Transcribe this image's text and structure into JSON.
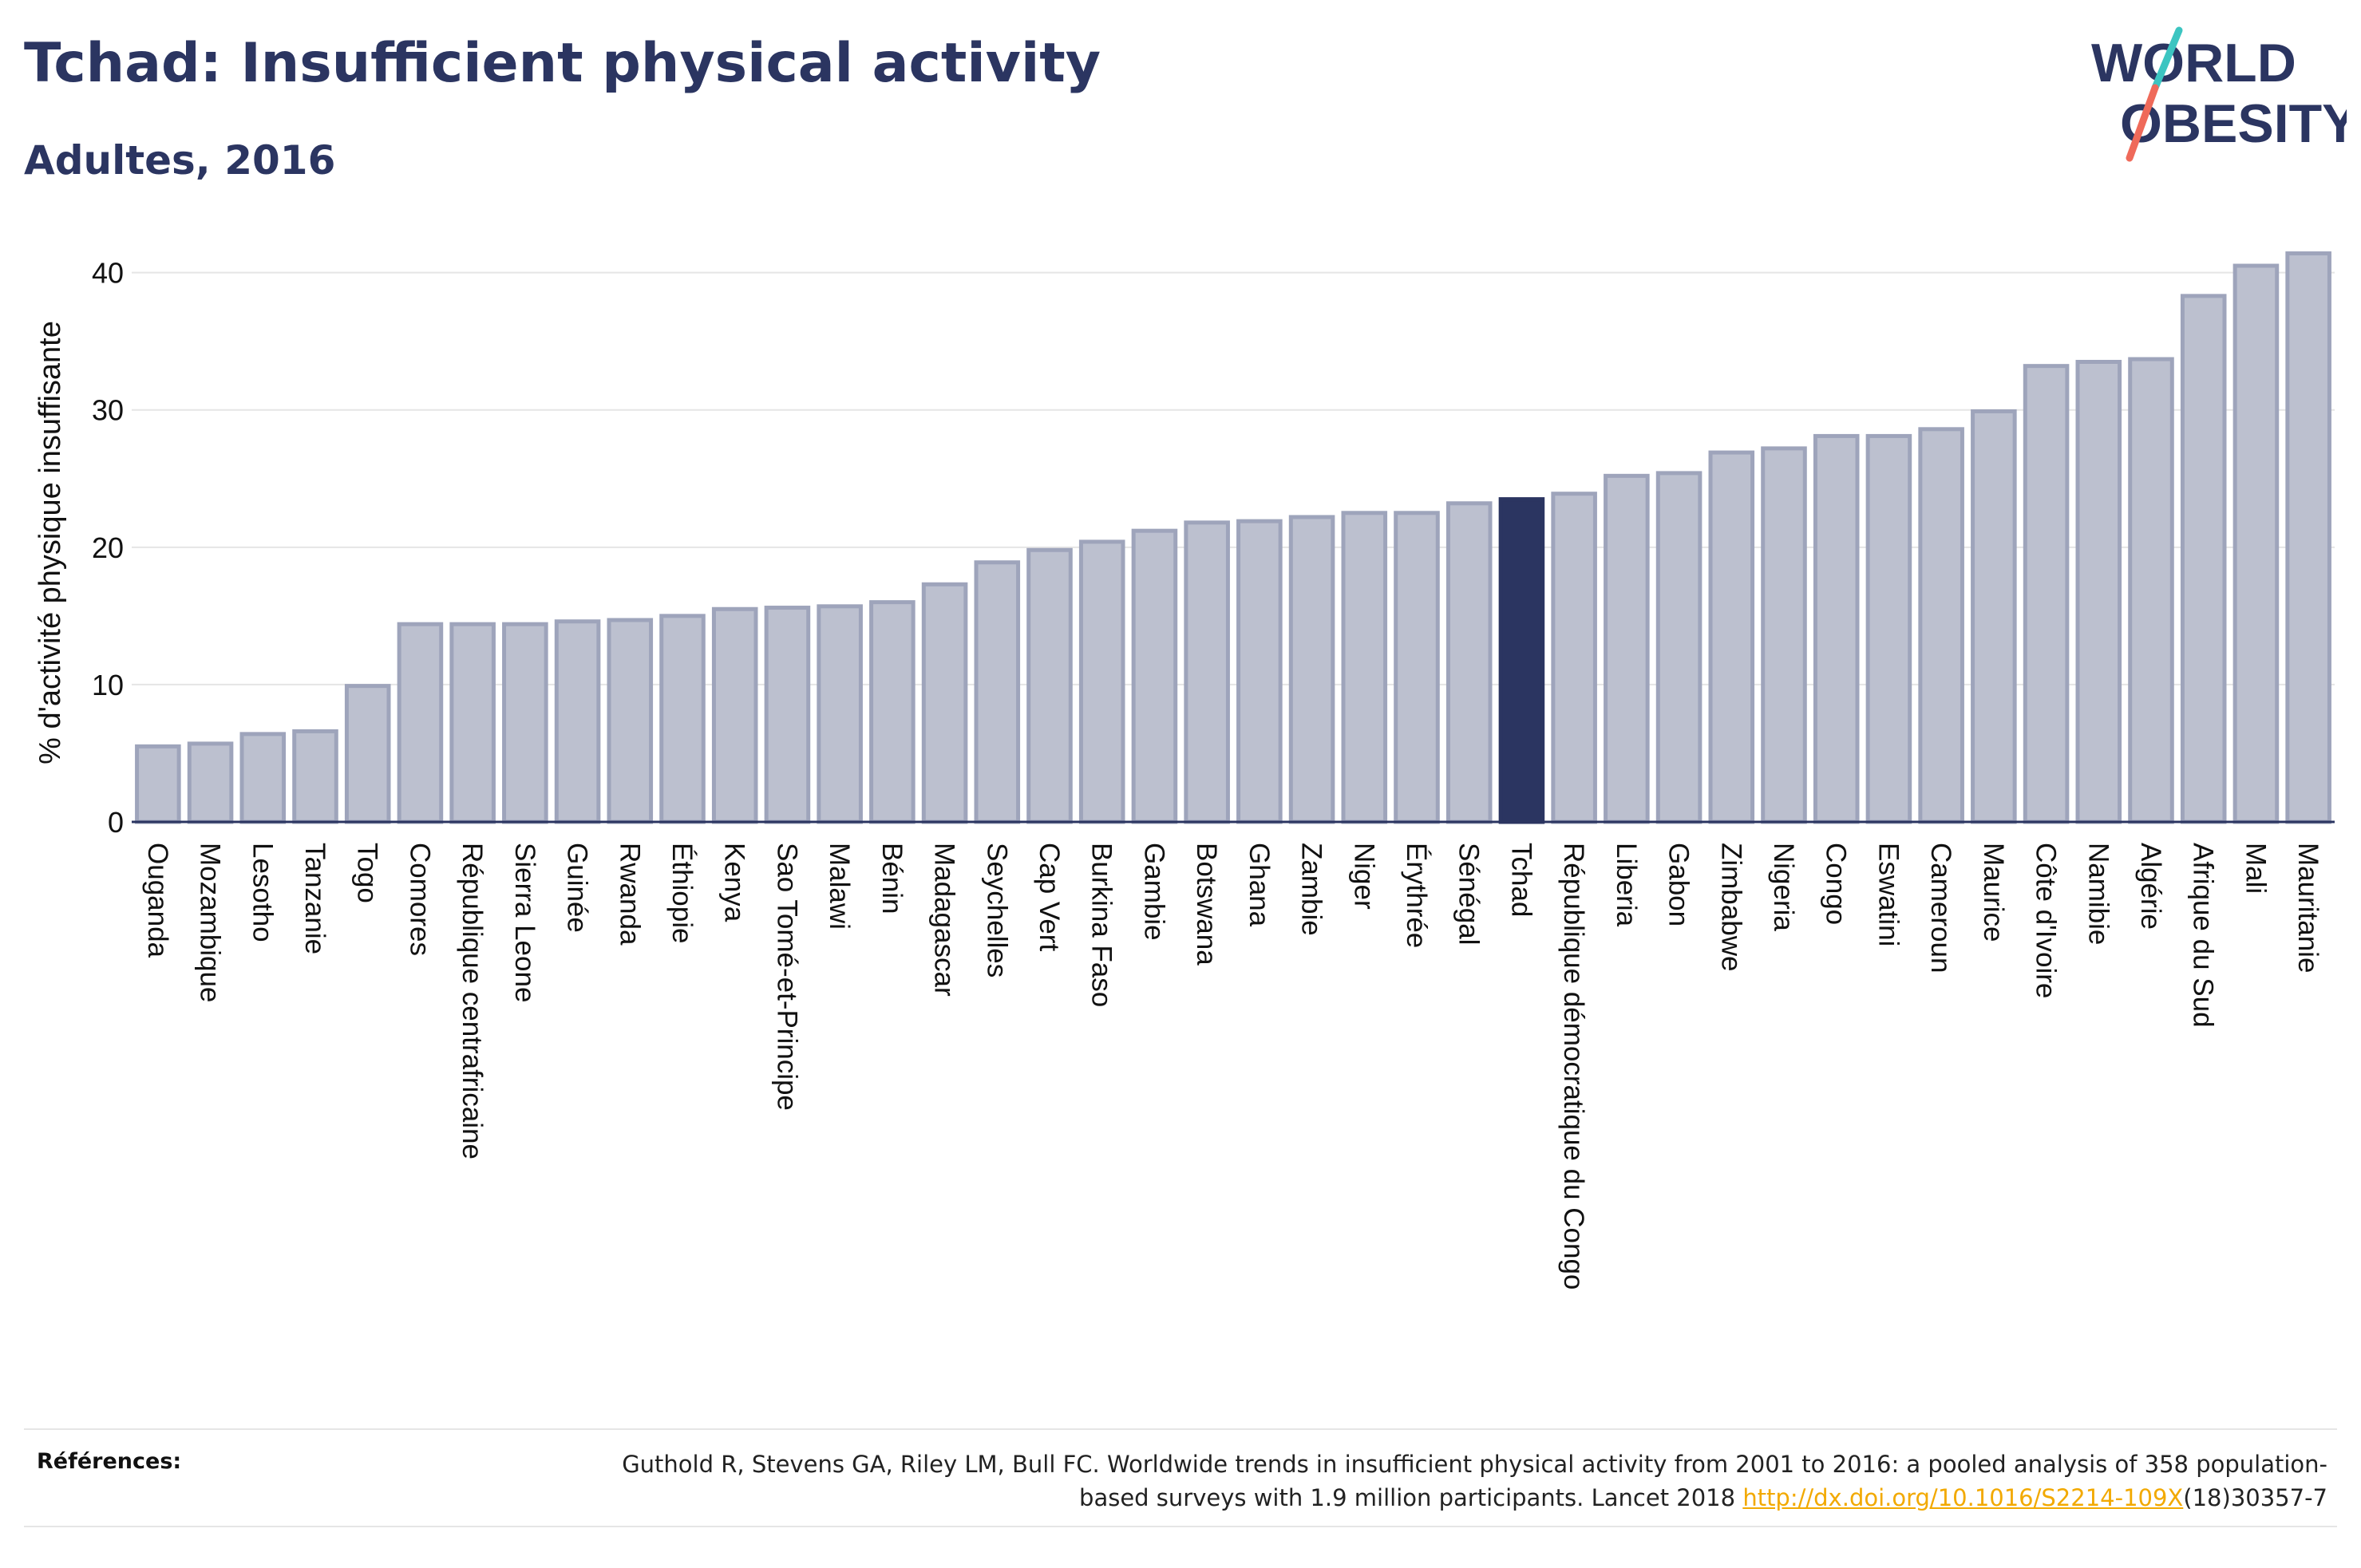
{
  "title": "Tchad: Insufficient physical activity",
  "subtitle": "Adultes, 2016",
  "logo": {
    "line1": "WORLD",
    "line2": "OBESITY"
  },
  "colors": {
    "bar_default": "#bcc0cf",
    "bar_border": "#9ea4bb",
    "bar_highlight": "#2b3561",
    "text": "#2b3561",
    "logo_teal": "#3cc5c1",
    "logo_coral": "#ef6a5a",
    "link": "#f2a900"
  },
  "chart_data": {
    "type": "bar",
    "ylabel": "% d'activité physique insuffisante",
    "ylim": [
      0,
      43
    ],
    "yticks": [
      0,
      10,
      20,
      30,
      40
    ],
    "grid": true,
    "highlight": "Tchad",
    "categories": [
      "Ouganda",
      "Mozambique",
      "Lesotho",
      "Tanzanie",
      "Togo",
      "Comores",
      "République centrafricaine",
      "Sierra Leone",
      "Guinée",
      "Rwanda",
      "Éthiopie",
      "Kenya",
      "Sao Tomé-et-Principe",
      "Malawi",
      "Bénin",
      "Madagascar",
      "Seychelles",
      "Cap Vert",
      "Burkina Faso",
      "Gambie",
      "Botswana",
      "Ghana",
      "Zambie",
      "Niger",
      "Érythrée",
      "Sénégal",
      "Tchad",
      "République démocratique du Congo",
      "Liberia",
      "Gabon",
      "Zimbabwe",
      "Nigeria",
      "Congo",
      "Eswatini",
      "Cameroun",
      "Maurice",
      "Côte d'Ivoire",
      "Namibie",
      "Algérie",
      "Afrique du Sud",
      "Mali",
      "Mauritanie"
    ],
    "values": [
      5.5,
      5.7,
      6.4,
      6.6,
      9.9,
      14.4,
      14.4,
      14.4,
      14.6,
      14.7,
      15.0,
      15.5,
      15.6,
      15.7,
      16.0,
      17.3,
      18.9,
      19.8,
      20.4,
      21.2,
      21.8,
      21.9,
      22.2,
      22.5,
      22.5,
      23.2,
      23.5,
      23.9,
      25.2,
      25.4,
      26.9,
      27.2,
      28.1,
      28.1,
      28.6,
      29.9,
      33.2,
      33.5,
      33.7,
      38.3,
      40.5,
      41.4
    ]
  },
  "footer": {
    "references_label": "Références:",
    "reference_text": "Guthold R, Stevens GA, Riley LM, Bull FC. Worldwide trends in insufficient physical activity from 2001 to 2016: a pooled analysis of 358 population-based surveys with 1.9 million participants. Lancet 2018 ",
    "reference_link": "http://dx.doi.org/10.1016/S2214-109X",
    "reference_suffix": "(18)30357-7"
  }
}
